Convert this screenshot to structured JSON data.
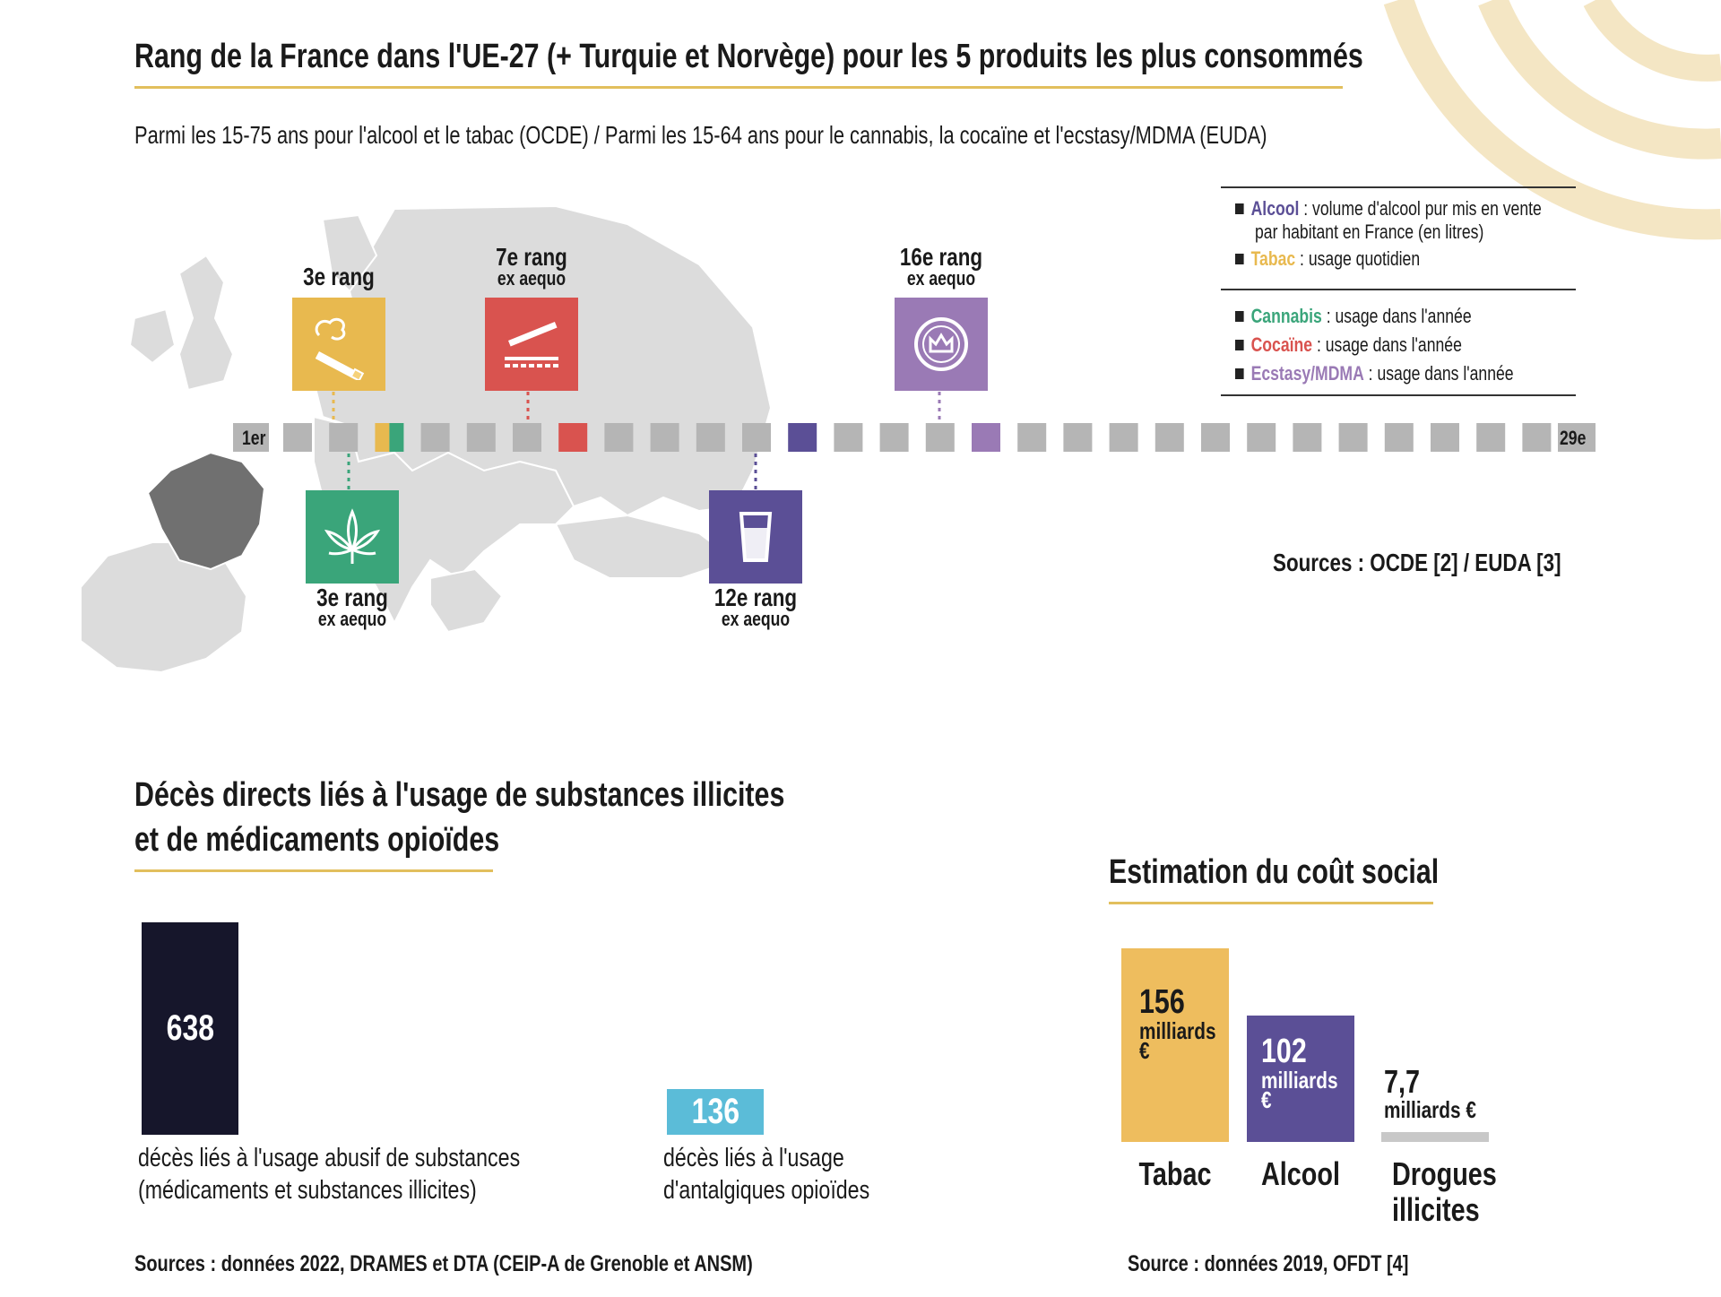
{
  "top_title": "Rang de la France dans l'UE-27 (+ Turquie et Norvège) pour les 5 produits les plus consommés",
  "subtitle": "Parmi les 15-75 ans pour l'alcool et le tabac (OCDE) / Parmi les 15-64 ans pour le cannabis, la cocaïne et l'ecstasy/MDMA (EUDA)",
  "legend": {
    "group1": [
      {
        "name": "Alcool",
        "desc": " : volume d'alcool pur mis en vente",
        "desc2": "par habitant en France (en litres)",
        "color": "#5b4f96"
      },
      {
        "name": "Tabac",
        "desc": " : usage quotidien",
        "color": "#e8b94f"
      }
    ],
    "group2": [
      {
        "name": "Cannabis",
        "desc": " : usage dans l'année",
        "color": "#3aa57a"
      },
      {
        "name": "Cocaïne",
        "desc": " : usage dans l'année",
        "color": "#d9534f"
      },
      {
        "name": "Ecstasy/MDMA",
        "desc": " : usage dans l'année",
        "color": "#9a7ab5"
      }
    ]
  },
  "rank_scale": {
    "start_label": "1er",
    "end_label": "29e",
    "total": 29,
    "default_color": "#b5b5b5"
  },
  "rank_labels": {
    "tabac": {
      "rank": "3e rang",
      "sub": ""
    },
    "cocaine": {
      "rank": "7e rang",
      "sub": "ex aequo"
    },
    "ecstasy": {
      "rank": "16e rang",
      "sub": "ex aequo"
    },
    "cannabis": {
      "rank": "3e rang",
      "sub": "ex aequo"
    },
    "alcool": {
      "rank": "12e rang",
      "sub": "ex aequo"
    }
  },
  "sources_top": "Sources : OCDE [2] / EUDA [3]",
  "deaths_title_line1": "Décès directs liés à l'usage de substances illicites",
  "deaths_title_line2": "et de médicaments opioïdes",
  "cost_title": "Estimation du coût social",
  "deaths_caption_1a": "décès liés à l'usage abusif de substances",
  "deaths_caption_1b": "(médicaments et substances illicites)",
  "deaths_caption_2a": "décès liés à l'usage",
  "deaths_caption_2b": "d'antalgiques opioïdes",
  "deaths_source": "Sources : données 2022, DRAMES et DTA (CEIP-A de Grenoble et ANSM)",
  "cost_labels": {
    "tabac_num": "156",
    "tabac_unit1": "milliards",
    "tabac_unit2": "€",
    "alcool_num": "102",
    "alcool_unit1": "milliards",
    "alcool_unit2": "€",
    "drogues_num": "7,7",
    "drogues_unit": "milliards €"
  },
  "cost_categories": {
    "tabac": "Tabac",
    "alcool": "Alcool",
    "drogues1": "Drogues",
    "drogues2": "illicites"
  },
  "cost_source": "Source : données 2019, OFDT [4]",
  "chart_data": [
    {
      "type": "table",
      "title": "Rang de la France dans l'UE-27 (+ Turquie et Norvège) pour les 5 produits les plus consommés",
      "scale": [
        1,
        29
      ],
      "series": [
        {
          "name": "Tabac",
          "rank": 3,
          "ex_aequo": false,
          "color": "#e8b94f"
        },
        {
          "name": "Cannabis",
          "rank": 3,
          "ex_aequo": true,
          "color": "#3aa57a"
        },
        {
          "name": "Cocaïne",
          "rank": 7,
          "ex_aequo": true,
          "color": "#d9534f"
        },
        {
          "name": "Alcool",
          "rank": 12,
          "ex_aequo": true,
          "color": "#5b4f96"
        },
        {
          "name": "Ecstasy/MDMA",
          "rank": 16,
          "ex_aequo": true,
          "color": "#9a7ab5"
        }
      ]
    },
    {
      "type": "bar",
      "title": "Décès directs liés à l'usage de substances illicites et de médicaments opioïdes",
      "categories": [
        "décès liés à l'usage abusif de substances (médicaments et substances illicites)",
        "décès liés à l'usage d'antalgiques opioïdes"
      ],
      "values": [
        638,
        136
      ],
      "colors": [
        "#16162b",
        "#5bbcd8"
      ]
    },
    {
      "type": "bar",
      "title": "Estimation du coût social",
      "categories": [
        "Tabac",
        "Alcool",
        "Drogues illicites"
      ],
      "values": [
        156,
        102,
        7.7
      ],
      "unit": "milliards €",
      "colors": [
        "#eebd5e",
        "#5b4f96",
        "#c8c8c8"
      ]
    }
  ]
}
